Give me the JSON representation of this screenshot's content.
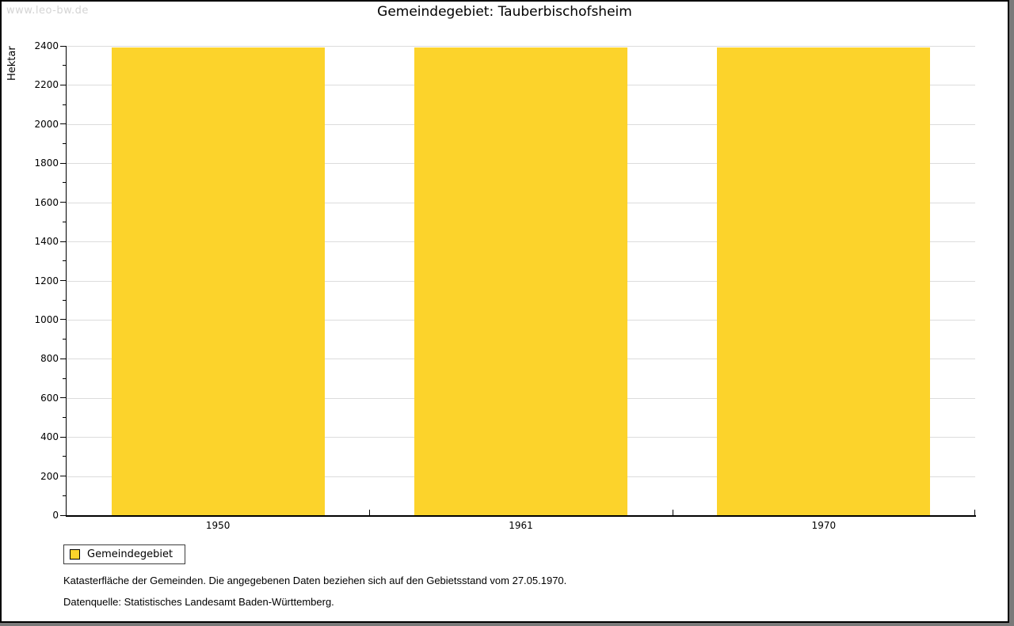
{
  "watermark": "www.leo-bw.de",
  "title": "Gemeindegebiet: Tauberbischofsheim",
  "chart_data": {
    "type": "bar",
    "title": "Gemeindegebiet: Tauberbischofsheim",
    "categories": [
      "1950",
      "1961",
      "1970"
    ],
    "series": [
      {
        "name": "Gemeindegebiet",
        "values": [
          2390,
          2390,
          2390
        ]
      }
    ],
    "xlabel": "",
    "ylabel": "Hektar",
    "ylim": [
      0,
      2400
    ],
    "ytick_step": 200,
    "yminor_step": 100,
    "grid": true,
    "gridline_color": "#dcdcdc",
    "bar_color": "#FCD32B",
    "legend_position": "bottom-left"
  },
  "legend": {
    "items": [
      {
        "label": "Gemeindegebiet",
        "color": "#FCD32B"
      }
    ]
  },
  "footnotes": [
    "Katasterfläche der Gemeinden. Die angegebenen Daten beziehen sich auf den Gebietsstand vom 27.05.1970.",
    "Datenquelle: Statistisches Landesamt Baden-Württemberg."
  ]
}
